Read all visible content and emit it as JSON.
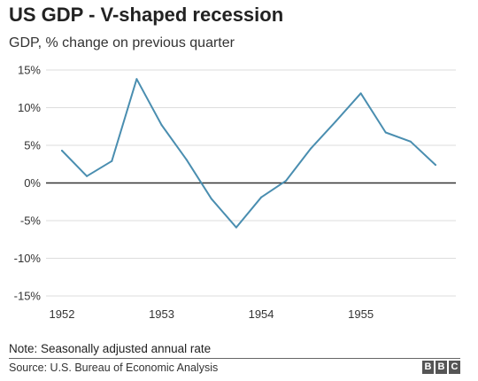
{
  "chart_data": {
    "type": "line",
    "title": "US GDP - V-shaped recession",
    "subtitle": "GDP, % change on previous quarter",
    "x_tick_labels": [
      "1952",
      "1953",
      "1954",
      "1955"
    ],
    "y_ticks": [
      15,
      10,
      5,
      0,
      -5,
      -10,
      -15
    ],
    "y_tick_labels": [
      "15%",
      "10%",
      "5%",
      "0%",
      "-5%",
      "-10%",
      "-15%"
    ],
    "ylim": [
      -15,
      15
    ],
    "xlim": [
      1952.0,
      1955.75
    ],
    "grid": true,
    "series": [
      {
        "x": [
          1952.0,
          1952.25,
          1952.5,
          1952.75,
          1953.0,
          1953.25,
          1953.5,
          1953.75,
          1954.0,
          1954.25,
          1954.5,
          1954.75,
          1955.0,
          1955.25,
          1955.5,
          1955.75
        ],
        "values": [
          4.3,
          0.9,
          2.9,
          13.8,
          7.7,
          3.1,
          -2.1,
          -5.9,
          -1.9,
          0.3,
          4.6,
          8.2,
          11.9,
          6.7,
          5.5,
          2.4
        ]
      }
    ],
    "colors": {
      "line": "#4a8eb0",
      "grid": "#dddddd",
      "zero_line": "#333333"
    }
  },
  "note": "Note: Seasonally adjusted annual rate",
  "source": "Source: U.S. Bureau of Economic Analysis",
  "logo": {
    "letters": [
      "B",
      "B",
      "C"
    ]
  }
}
